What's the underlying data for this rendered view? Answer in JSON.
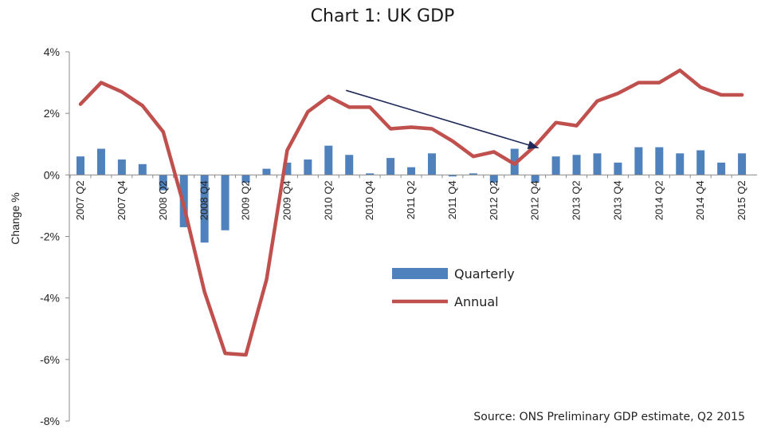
{
  "chart_data": {
    "type": "bar",
    "title": "Chart 1: UK GDP",
    "ylabel": "Change %",
    "xlabel": "",
    "ylim": [
      -8,
      4
    ],
    "yticks": [
      {
        "value": 4,
        "label": "4%"
      },
      {
        "value": 2,
        "label": "2%"
      },
      {
        "value": 0,
        "label": "0%"
      },
      {
        "value": -2,
        "label": "-2%"
      },
      {
        "value": -4,
        "label": "-4%"
      },
      {
        "value": -6,
        "label": "-6%"
      },
      {
        "value": -8,
        "label": "-8%"
      }
    ],
    "categories": [
      "2007 Q2",
      "2007 Q3",
      "2007 Q4",
      "2008 Q1",
      "2008 Q2",
      "2008 Q3",
      "2008 Q4",
      "2009 Q1",
      "2009 Q2",
      "2009 Q3",
      "2009 Q4",
      "2010 Q1",
      "2010 Q2",
      "2010 Q3",
      "2010 Q4",
      "2011 Q1",
      "2011 Q2",
      "2011 Q3",
      "2011 Q4",
      "2012 Q1",
      "2012 Q2",
      "2012 Q3",
      "2012 Q4",
      "2013 Q1",
      "2013 Q2",
      "2013 Q3",
      "2013 Q4",
      "2014 Q1",
      "2014 Q2",
      "2014 Q3",
      "2014 Q4",
      "2015 Q1",
      "2015 Q2"
    ],
    "tick_labels": [
      "2007 Q2",
      "2007 Q4",
      "2008 Q2",
      "2008 Q4",
      "2009 Q2",
      "2009 Q4",
      "2010 Q2",
      "2010 Q4",
      "2011 Q2",
      "2011 Q4",
      "2012 Q2",
      "2012 Q4",
      "2013 Q2",
      "2013 Q4",
      "2014 Q2",
      "2014 Q4",
      "2015 Q2"
    ],
    "series": [
      {
        "name": "Quarterly",
        "kind": "bar",
        "color": "#4f81bd",
        "values": [
          0.6,
          0.85,
          0.5,
          0.35,
          -0.5,
          -1.7,
          -2.2,
          -1.8,
          -0.25,
          0.2,
          0.4,
          0.5,
          0.95,
          0.65,
          0.05,
          0.55,
          0.25,
          0.7,
          -0.05,
          0.05,
          -0.25,
          0.85,
          -0.25,
          0.6,
          0.65,
          0.7,
          0.4,
          0.9,
          0.9,
          0.7,
          0.8,
          0.4,
          0.7
        ]
      },
      {
        "name": "Annual",
        "kind": "line",
        "color": "#c0504d",
        "values": [
          2.3,
          3.0,
          2.7,
          2.25,
          1.4,
          -1.0,
          -3.8,
          -5.8,
          -5.85,
          -3.4,
          0.8,
          2.05,
          2.55,
          2.2,
          2.2,
          1.5,
          1.55,
          1.5,
          1.1,
          0.6,
          0.75,
          0.35,
          0.95,
          1.7,
          1.6,
          2.4,
          2.65,
          3.0,
          3.0,
          3.4,
          2.85,
          2.6,
          2.6
        ]
      }
    ],
    "legend": [
      {
        "name": "Quarterly",
        "kind": "bar",
        "color": "#4f81bd"
      },
      {
        "name": "Annual",
        "kind": "line",
        "color": "#c0504d"
      }
    ],
    "legend_position": "center-right",
    "arrow_color": "#1f2a5a",
    "annotation": {
      "kind": "arrow",
      "from_category": "2010 Q3",
      "from_value": 2.8,
      "to_category": "2012 Q4",
      "to_value": 0.8
    },
    "source": "Source: ONS Preliminary GDP estimate, Q2 2015",
    "grid": false
  }
}
